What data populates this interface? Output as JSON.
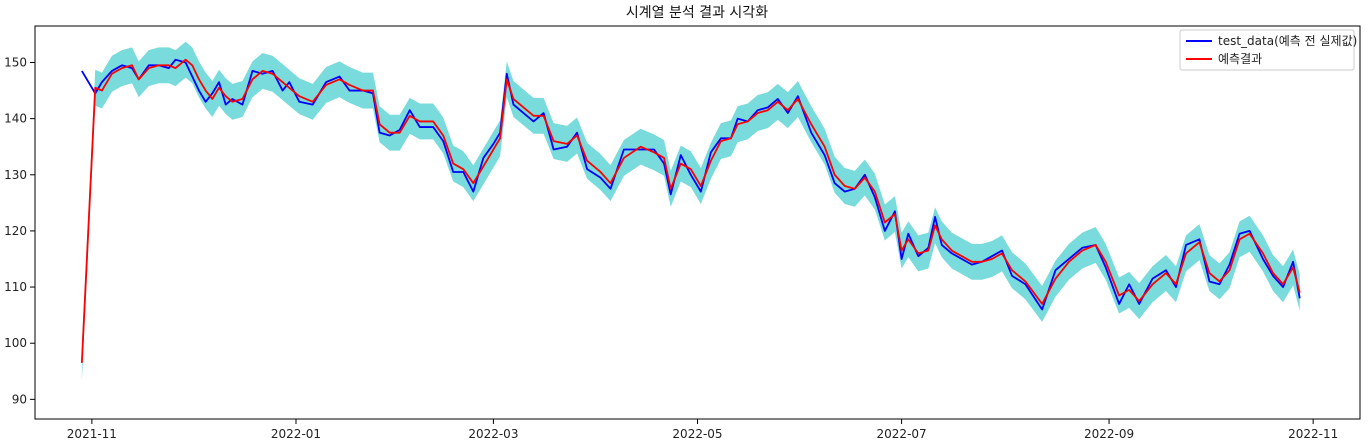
{
  "chart_data": {
    "type": "line",
    "title": "시계열 분석 결과 시각화",
    "xlabel": "",
    "ylabel": "",
    "x_range": [
      "2021-10-15",
      "2022-11-15"
    ],
    "ylim": [
      86.5,
      156.5
    ],
    "grid": false,
    "legend_position": "top-right",
    "x_ticks": [
      "2021-11",
      "2022-01",
      "2022-03",
      "2022-05",
      "2022-07",
      "2022-09",
      "2022-11"
    ],
    "y_ticks": [
      90,
      100,
      110,
      120,
      130,
      140,
      150
    ],
    "colors": {
      "actual": "#0000ff",
      "prediction": "#ff0000",
      "band": "#40cccc"
    },
    "series": [
      {
        "name": "test_data(예측 전 실제값)",
        "points": [
          [
            "2021-10-29",
            148.5
          ],
          [
            "2021-11-02",
            144.5
          ],
          [
            "2021-11-04",
            146.5
          ],
          [
            "2021-11-07",
            148.5
          ],
          [
            "2021-11-10",
            149.5
          ],
          [
            "2021-11-13",
            149.0
          ],
          [
            "2021-11-15",
            147.0
          ],
          [
            "2021-11-18",
            149.5
          ],
          [
            "2021-11-21",
            149.5
          ],
          [
            "2021-11-24",
            149.0
          ],
          [
            "2021-11-26",
            150.5
          ],
          [
            "2021-11-29",
            150.0
          ],
          [
            "2021-12-01",
            147.5
          ],
          [
            "2021-12-03",
            145.0
          ],
          [
            "2021-12-05",
            143.0
          ],
          [
            "2021-12-07",
            144.5
          ],
          [
            "2021-12-09",
            146.5
          ],
          [
            "2021-12-11",
            142.5
          ],
          [
            "2021-12-13",
            143.5
          ],
          [
            "2021-12-16",
            142.5
          ],
          [
            "2021-12-19",
            148.5
          ],
          [
            "2021-12-22",
            148.0
          ],
          [
            "2021-12-25",
            148.5
          ],
          [
            "2021-12-28",
            145.0
          ],
          [
            "2021-12-30",
            146.5
          ],
          [
            "2022-01-02",
            143.0
          ],
          [
            "2022-01-06",
            142.5
          ],
          [
            "2022-01-10",
            146.5
          ],
          [
            "2022-01-14",
            147.5
          ],
          [
            "2022-01-17",
            145.0
          ],
          [
            "2022-01-21",
            145.0
          ],
          [
            "2022-01-24",
            144.5
          ],
          [
            "2022-01-26",
            137.5
          ],
          [
            "2022-01-29",
            137.0
          ],
          [
            "2022-02-01",
            138.0
          ],
          [
            "2022-02-04",
            141.5
          ],
          [
            "2022-02-07",
            138.5
          ],
          [
            "2022-02-11",
            138.5
          ],
          [
            "2022-02-14",
            136.0
          ],
          [
            "2022-02-17",
            130.5
          ],
          [
            "2022-02-20",
            130.5
          ],
          [
            "2022-02-23",
            127.0
          ],
          [
            "2022-02-26",
            133.0
          ],
          [
            "2022-03-01",
            135.5
          ],
          [
            "2022-03-03",
            137.5
          ],
          [
            "2022-03-05",
            148.0
          ],
          [
            "2022-03-07",
            142.5
          ],
          [
            "2022-03-10",
            141.0
          ],
          [
            "2022-03-13",
            139.5
          ],
          [
            "2022-03-16",
            141.0
          ],
          [
            "2022-03-19",
            134.5
          ],
          [
            "2022-03-23",
            135.0
          ],
          [
            "2022-03-26",
            137.5
          ],
          [
            "2022-03-29",
            131.0
          ],
          [
            "2022-04-02",
            129.5
          ],
          [
            "2022-04-05",
            127.5
          ],
          [
            "2022-04-09",
            134.5
          ],
          [
            "2022-04-14",
            134.5
          ],
          [
            "2022-04-18",
            134.5
          ],
          [
            "2022-04-21",
            132.0
          ],
          [
            "2022-04-23",
            126.5
          ],
          [
            "2022-04-26",
            133.5
          ],
          [
            "2022-04-29",
            130.0
          ],
          [
            "2022-05-02",
            127.0
          ],
          [
            "2022-05-05",
            134.0
          ],
          [
            "2022-05-08",
            136.5
          ],
          [
            "2022-05-11",
            136.5
          ],
          [
            "2022-05-13",
            140.0
          ],
          [
            "2022-05-16",
            139.5
          ],
          [
            "2022-05-19",
            141.5
          ],
          [
            "2022-05-22",
            142.0
          ],
          [
            "2022-05-25",
            143.5
          ],
          [
            "2022-05-28",
            141.0
          ],
          [
            "2022-05-31",
            144.0
          ],
          [
            "2022-06-04",
            137.5
          ],
          [
            "2022-06-08",
            133.5
          ],
          [
            "2022-06-11",
            128.5
          ],
          [
            "2022-06-14",
            127.0
          ],
          [
            "2022-06-17",
            127.5
          ],
          [
            "2022-06-20",
            130.0
          ],
          [
            "2022-06-23",
            126.0
          ],
          [
            "2022-06-26",
            120.0
          ],
          [
            "2022-06-29",
            123.5
          ],
          [
            "2022-07-01",
            115.0
          ],
          [
            "2022-07-03",
            119.5
          ],
          [
            "2022-07-06",
            115.5
          ],
          [
            "2022-07-09",
            117.0
          ],
          [
            "2022-07-11",
            122.5
          ],
          [
            "2022-07-13",
            117.5
          ],
          [
            "2022-07-16",
            116.0
          ],
          [
            "2022-07-19",
            115.0
          ],
          [
            "2022-07-22",
            114.0
          ],
          [
            "2022-07-25",
            114.5
          ],
          [
            "2022-07-28",
            115.5
          ],
          [
            "2022-07-31",
            116.5
          ],
          [
            "2022-08-03",
            112.0
          ],
          [
            "2022-08-07",
            110.5
          ],
          [
            "2022-08-12",
            106.0
          ],
          [
            "2022-08-16",
            113.0
          ],
          [
            "2022-08-20",
            115.0
          ],
          [
            "2022-08-24",
            117.0
          ],
          [
            "2022-08-28",
            117.5
          ],
          [
            "2022-08-31",
            113.5
          ],
          [
            "2022-09-04",
            107.0
          ],
          [
            "2022-09-07",
            110.5
          ],
          [
            "2022-09-10",
            107.0
          ],
          [
            "2022-09-14",
            111.5
          ],
          [
            "2022-09-18",
            113.0
          ],
          [
            "2022-09-21",
            110.0
          ],
          [
            "2022-09-24",
            117.5
          ],
          [
            "2022-09-28",
            118.5
          ],
          [
            "2022-10-01",
            111.0
          ],
          [
            "2022-10-04",
            110.5
          ],
          [
            "2022-10-07",
            114.0
          ],
          [
            "2022-10-10",
            119.5
          ],
          [
            "2022-10-13",
            120.0
          ],
          [
            "2022-10-17",
            115.0
          ],
          [
            "2022-10-20",
            112.0
          ],
          [
            "2022-10-23",
            110.0
          ],
          [
            "2022-10-26",
            114.5
          ],
          [
            "2022-10-28",
            108.0
          ]
        ]
      },
      {
        "name": "예측결과",
        "points": [
          [
            "2021-10-29",
            96.5
          ],
          [
            "2021-11-02",
            145.5
          ],
          [
            "2021-11-04",
            145.0
          ],
          [
            "2021-11-07",
            148.0
          ],
          [
            "2021-11-10",
            149.0
          ],
          [
            "2021-11-13",
            149.5
          ],
          [
            "2021-11-15",
            147.0
          ],
          [
            "2021-11-18",
            149.0
          ],
          [
            "2021-11-21",
            149.5
          ],
          [
            "2021-11-24",
            149.5
          ],
          [
            "2021-11-26",
            149.0
          ],
          [
            "2021-11-29",
            150.5
          ],
          [
            "2021-12-01",
            149.5
          ],
          [
            "2021-12-03",
            147.0
          ],
          [
            "2021-12-05",
            145.0
          ],
          [
            "2021-12-07",
            143.5
          ],
          [
            "2021-12-09",
            145.5
          ],
          [
            "2021-12-11",
            144.0
          ],
          [
            "2021-12-13",
            143.0
          ],
          [
            "2021-12-16",
            143.5
          ],
          [
            "2021-12-19",
            147.0
          ],
          [
            "2021-12-22",
            148.5
          ],
          [
            "2021-12-25",
            148.0
          ],
          [
            "2021-12-28",
            146.5
          ],
          [
            "2021-12-30",
            145.5
          ],
          [
            "2022-01-02",
            144.0
          ],
          [
            "2022-01-06",
            143.0
          ],
          [
            "2022-01-10",
            146.0
          ],
          [
            "2022-01-14",
            147.0
          ],
          [
            "2022-01-17",
            146.0
          ],
          [
            "2022-01-21",
            145.0
          ],
          [
            "2022-01-24",
            145.0
          ],
          [
            "2022-01-26",
            139.0
          ],
          [
            "2022-01-29",
            137.5
          ],
          [
            "2022-02-01",
            137.5
          ],
          [
            "2022-02-04",
            140.5
          ],
          [
            "2022-02-07",
            139.5
          ],
          [
            "2022-02-11",
            139.5
          ],
          [
            "2022-02-14",
            137.0
          ],
          [
            "2022-02-17",
            132.0
          ],
          [
            "2022-02-20",
            131.0
          ],
          [
            "2022-02-23",
            128.5
          ],
          [
            "2022-02-26",
            131.5
          ],
          [
            "2022-03-01",
            134.5
          ],
          [
            "2022-03-03",
            136.5
          ],
          [
            "2022-03-05",
            147.0
          ],
          [
            "2022-03-07",
            143.5
          ],
          [
            "2022-03-10",
            142.0
          ],
          [
            "2022-03-13",
            140.5
          ],
          [
            "2022-03-16",
            140.5
          ],
          [
            "2022-03-19",
            136.0
          ],
          [
            "2022-03-23",
            135.5
          ],
          [
            "2022-03-26",
            137.0
          ],
          [
            "2022-03-29",
            132.5
          ],
          [
            "2022-04-02",
            130.5
          ],
          [
            "2022-04-05",
            128.5
          ],
          [
            "2022-04-09",
            133.0
          ],
          [
            "2022-04-14",
            135.0
          ],
          [
            "2022-04-18",
            134.0
          ],
          [
            "2022-04-21",
            133.0
          ],
          [
            "2022-04-23",
            127.5
          ],
          [
            "2022-04-26",
            132.0
          ],
          [
            "2022-04-29",
            131.0
          ],
          [
            "2022-05-02",
            128.0
          ],
          [
            "2022-05-05",
            132.5
          ],
          [
            "2022-05-08",
            136.0
          ],
          [
            "2022-05-11",
            136.5
          ],
          [
            "2022-05-13",
            139.0
          ],
          [
            "2022-05-16",
            139.5
          ],
          [
            "2022-05-19",
            141.0
          ],
          [
            "2022-05-22",
            141.5
          ],
          [
            "2022-05-25",
            143.0
          ],
          [
            "2022-05-28",
            141.5
          ],
          [
            "2022-05-31",
            143.5
          ],
          [
            "2022-06-04",
            139.0
          ],
          [
            "2022-06-08",
            135.0
          ],
          [
            "2022-06-11",
            130.0
          ],
          [
            "2022-06-14",
            128.0
          ],
          [
            "2022-06-17",
            127.5
          ],
          [
            "2022-06-20",
            129.5
          ],
          [
            "2022-06-23",
            127.0
          ],
          [
            "2022-06-26",
            121.5
          ],
          [
            "2022-06-29",
            123.0
          ],
          [
            "2022-07-01",
            116.5
          ],
          [
            "2022-07-03",
            118.5
          ],
          [
            "2022-07-06",
            116.0
          ],
          [
            "2022-07-09",
            116.5
          ],
          [
            "2022-07-11",
            121.0
          ],
          [
            "2022-07-13",
            118.5
          ],
          [
            "2022-07-16",
            116.5
          ],
          [
            "2022-07-19",
            115.5
          ],
          [
            "2022-07-22",
            114.5
          ],
          [
            "2022-07-25",
            114.5
          ],
          [
            "2022-07-28",
            115.0
          ],
          [
            "2022-07-31",
            116.0
          ],
          [
            "2022-08-03",
            113.0
          ],
          [
            "2022-08-07",
            111.0
          ],
          [
            "2022-08-12",
            107.0
          ],
          [
            "2022-08-16",
            111.5
          ],
          [
            "2022-08-20",
            114.5
          ],
          [
            "2022-08-24",
            116.5
          ],
          [
            "2022-08-28",
            117.5
          ],
          [
            "2022-08-31",
            114.5
          ],
          [
            "2022-09-04",
            108.5
          ],
          [
            "2022-09-07",
            109.5
          ],
          [
            "2022-09-10",
            107.5
          ],
          [
            "2022-09-14",
            110.5
          ],
          [
            "2022-09-18",
            112.5
          ],
          [
            "2022-09-21",
            110.5
          ],
          [
            "2022-09-24",
            116.0
          ],
          [
            "2022-09-28",
            118.0
          ],
          [
            "2022-10-01",
            112.5
          ],
          [
            "2022-10-04",
            111.0
          ],
          [
            "2022-10-07",
            113.0
          ],
          [
            "2022-10-10",
            118.5
          ],
          [
            "2022-10-13",
            119.5
          ],
          [
            "2022-10-17",
            116.0
          ],
          [
            "2022-10-20",
            112.5
          ],
          [
            "2022-10-23",
            110.5
          ],
          [
            "2022-10-26",
            113.5
          ],
          [
            "2022-10-28",
            109.0
          ]
        ]
      }
    ],
    "band": {
      "half_width": 3.2
    }
  }
}
